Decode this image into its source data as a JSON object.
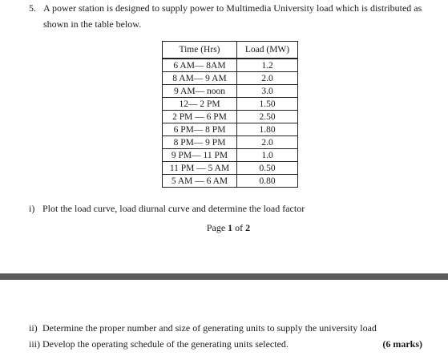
{
  "question": {
    "number": "5.",
    "text_line1": "A power station is designed to supply power to Multimedia University load which is distributed as",
    "text_line2": "shown in the table below."
  },
  "table": {
    "headers": [
      "Time (Hrs)",
      "Load (MW)"
    ],
    "rows": [
      [
        "6 AM— 8AM",
        "1.2"
      ],
      [
        "8 AM— 9 AM",
        "2.0"
      ],
      [
        "9 AM— noon",
        "3.0"
      ],
      [
        "12— 2 PM",
        "1.50"
      ],
      [
        "2 PM — 6 PM",
        "2.50"
      ],
      [
        "6 PM— 8 PM",
        "1.80"
      ],
      [
        "8 PM— 9 PM",
        "2.0"
      ],
      [
        "9 PM— 11 PM",
        "1.0"
      ],
      [
        "11 PM — 5 AM",
        "0.50"
      ],
      [
        "5 AM — 6 AM",
        "0.80"
      ]
    ]
  },
  "parts": {
    "i": {
      "label": "i)",
      "text": "Plot the load curve, load diurnal curve and determine the load factor"
    },
    "ii": {
      "label": "ii)",
      "text": "Determine the proper number and size of generating units to supply the university load"
    },
    "iii": {
      "label": "iii)",
      "text": "Develop the operating schedule of the generating units selected."
    }
  },
  "page": {
    "prefix": "Page",
    "current": "1",
    "of": "of",
    "total": "2"
  },
  "marks": "(6 marks)"
}
